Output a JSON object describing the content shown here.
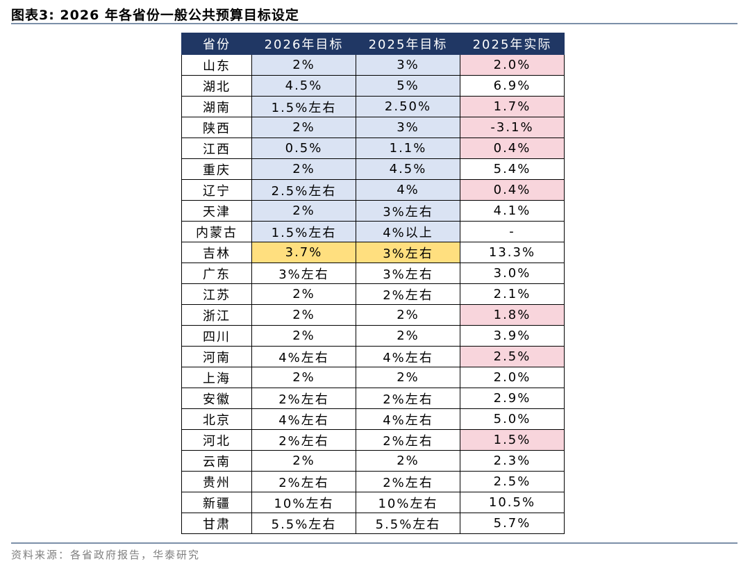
{
  "title": "图表3:  2026 年各省份一般公共预算目标设定",
  "table": {
    "headers": [
      "省份",
      "2026年目标",
      "2025年目标",
      "2025年实际"
    ],
    "rows": [
      [
        "山东",
        "2%",
        "3%",
        "2.0%"
      ],
      [
        "湖北",
        "4.5%",
        "5%",
        "6.9%"
      ],
      [
        "湖南",
        "1.5%左右",
        "2.50%",
        "1.7%"
      ],
      [
        "陕西",
        "2%",
        "3%",
        "-3.1%"
      ],
      [
        "江西",
        "0.5%",
        "1.1%",
        "0.4%"
      ],
      [
        "重庆",
        "2%",
        "4.5%",
        "5.4%"
      ],
      [
        "辽宁",
        "2.5%左右",
        "4%",
        "0.4%"
      ],
      [
        "天津",
        "2%",
        "3%左右",
        "4.1%"
      ],
      [
        "内蒙古",
        "1.5%左右",
        "4%以上",
        "-"
      ],
      [
        "吉林",
        "3.7%",
        "3%左右",
        "13.3%"
      ],
      [
        "广东",
        "3%左右",
        "3%左右",
        "3.0%"
      ],
      [
        "江苏",
        "2%",
        "2%左右",
        "2.1%"
      ],
      [
        "浙江",
        "2%",
        "2%",
        "1.8%"
      ],
      [
        "四川",
        "2%",
        "2%",
        "3.9%"
      ],
      [
        "河南",
        "4%左右",
        "4%左右",
        "2.5%"
      ],
      [
        "上海",
        "2%",
        "2%",
        "2.0%"
      ],
      [
        "安徽",
        "2%左右",
        "2%左右",
        "2.9%"
      ],
      [
        "北京",
        "4%左右",
        "4%左右",
        "5.0%"
      ],
      [
        "河北",
        "2%左右",
        "2%左右",
        "1.5%"
      ],
      [
        "云南",
        "2%",
        "2%",
        "2.3%"
      ],
      [
        "贵州",
        "2%左右",
        "2%左右",
        "2.5%"
      ],
      [
        "新疆",
        "10%左右",
        "10%左右",
        "10.5%"
      ],
      [
        "甘肃",
        "5.5%左右",
        "5.5%左右",
        "5.7%"
      ]
    ],
    "highlights": [
      [
        "",
        "blue",
        "blue",
        "pink"
      ],
      [
        "",
        "blue",
        "blue",
        ""
      ],
      [
        "",
        "blue",
        "blue",
        "pink"
      ],
      [
        "",
        "blue",
        "blue",
        "pink"
      ],
      [
        "",
        "blue",
        "blue",
        "pink"
      ],
      [
        "",
        "blue",
        "blue",
        ""
      ],
      [
        "",
        "blue",
        "blue",
        "pink"
      ],
      [
        "",
        "blue",
        "blue",
        ""
      ],
      [
        "",
        "blue",
        "blue",
        ""
      ],
      [
        "",
        "yellow",
        "yellow",
        ""
      ],
      [
        "",
        "",
        "",
        ""
      ],
      [
        "",
        "",
        "",
        ""
      ],
      [
        "",
        "",
        "",
        "pink"
      ],
      [
        "",
        "",
        "",
        ""
      ],
      [
        "",
        "",
        "",
        "pink"
      ],
      [
        "",
        "",
        "",
        ""
      ],
      [
        "",
        "",
        "",
        ""
      ],
      [
        "",
        "",
        "",
        ""
      ],
      [
        "",
        "",
        "",
        "pink"
      ],
      [
        "",
        "",
        "",
        ""
      ],
      [
        "",
        "",
        "",
        ""
      ],
      [
        "",
        "",
        "",
        ""
      ],
      [
        "",
        "",
        "",
        ""
      ]
    ]
  },
  "colors": {
    "header_bg": "#203764",
    "header_text": "#ffffff",
    "blue_highlight": "#dae3f3",
    "pink_highlight": "#f8d5dc",
    "yellow_highlight": "#ffdf7f",
    "rule": "#7b8fa8"
  },
  "source": "资料来源：各省政府报告，华泰研究"
}
